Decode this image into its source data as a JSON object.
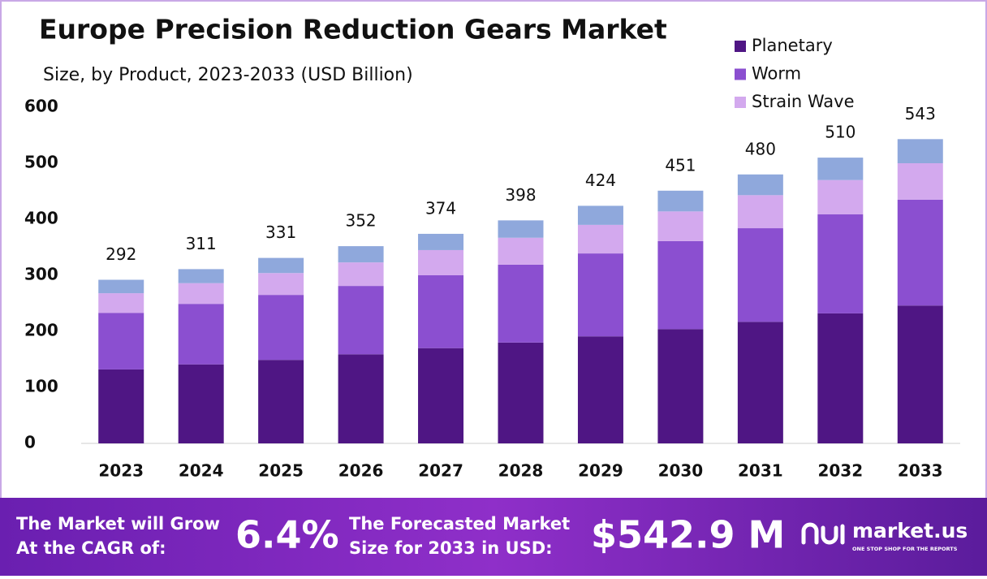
{
  "chart_data": {
    "type": "stacked-bar",
    "title": "Europe Precision Reduction Gears Market",
    "subtitle": "Size, by Product, 2023-2033 (USD Billion)",
    "categories": [
      "2023",
      "2024",
      "2025",
      "2026",
      "2027",
      "2028",
      "2029",
      "2030",
      "2031",
      "2032",
      "2033"
    ],
    "series": [
      {
        "name": "Planetary",
        "color": "#4f1684",
        "values": [
          132,
          141,
          149,
          159,
          170,
          180,
          191,
          204,
          217,
          232,
          246
        ]
      },
      {
        "name": "Worm",
        "color": "#8b4fd0",
        "values": [
          101,
          108,
          116,
          122,
          130,
          139,
          148,
          157,
          167,
          177,
          189
        ]
      },
      {
        "name": "Strain Wave",
        "color": "#d3a9ee",
        "values": [
          35,
          37,
          39,
          42,
          45,
          48,
          51,
          53,
          59,
          61,
          65
        ]
      },
      {
        "color": "#8fa8dc",
        "values": [
          24,
          25,
          27,
          29,
          29,
          31,
          34,
          37,
          37,
          40,
          43
        ]
      }
    ],
    "totals": [
      292,
      311,
      331,
      352,
      374,
      398,
      424,
      451,
      480,
      510,
      543
    ],
    "ylim": [
      0,
      600
    ],
    "yticks": [
      0,
      100,
      200,
      300,
      400,
      500,
      600
    ],
    "grid": false,
    "legend": "top-right"
  },
  "footer": {
    "grow_line1": "The Market will Grow",
    "grow_line2": "At the CAGR of:",
    "cagr": "6.4%",
    "forecast_line1": "The Forecasted Market",
    "forecast_line2": "Size for 2033 in USD:",
    "forecast_value": "$542.9 M",
    "brand": "market.us",
    "tagline": "ONE STOP SHOP FOR THE REPORTS"
  }
}
